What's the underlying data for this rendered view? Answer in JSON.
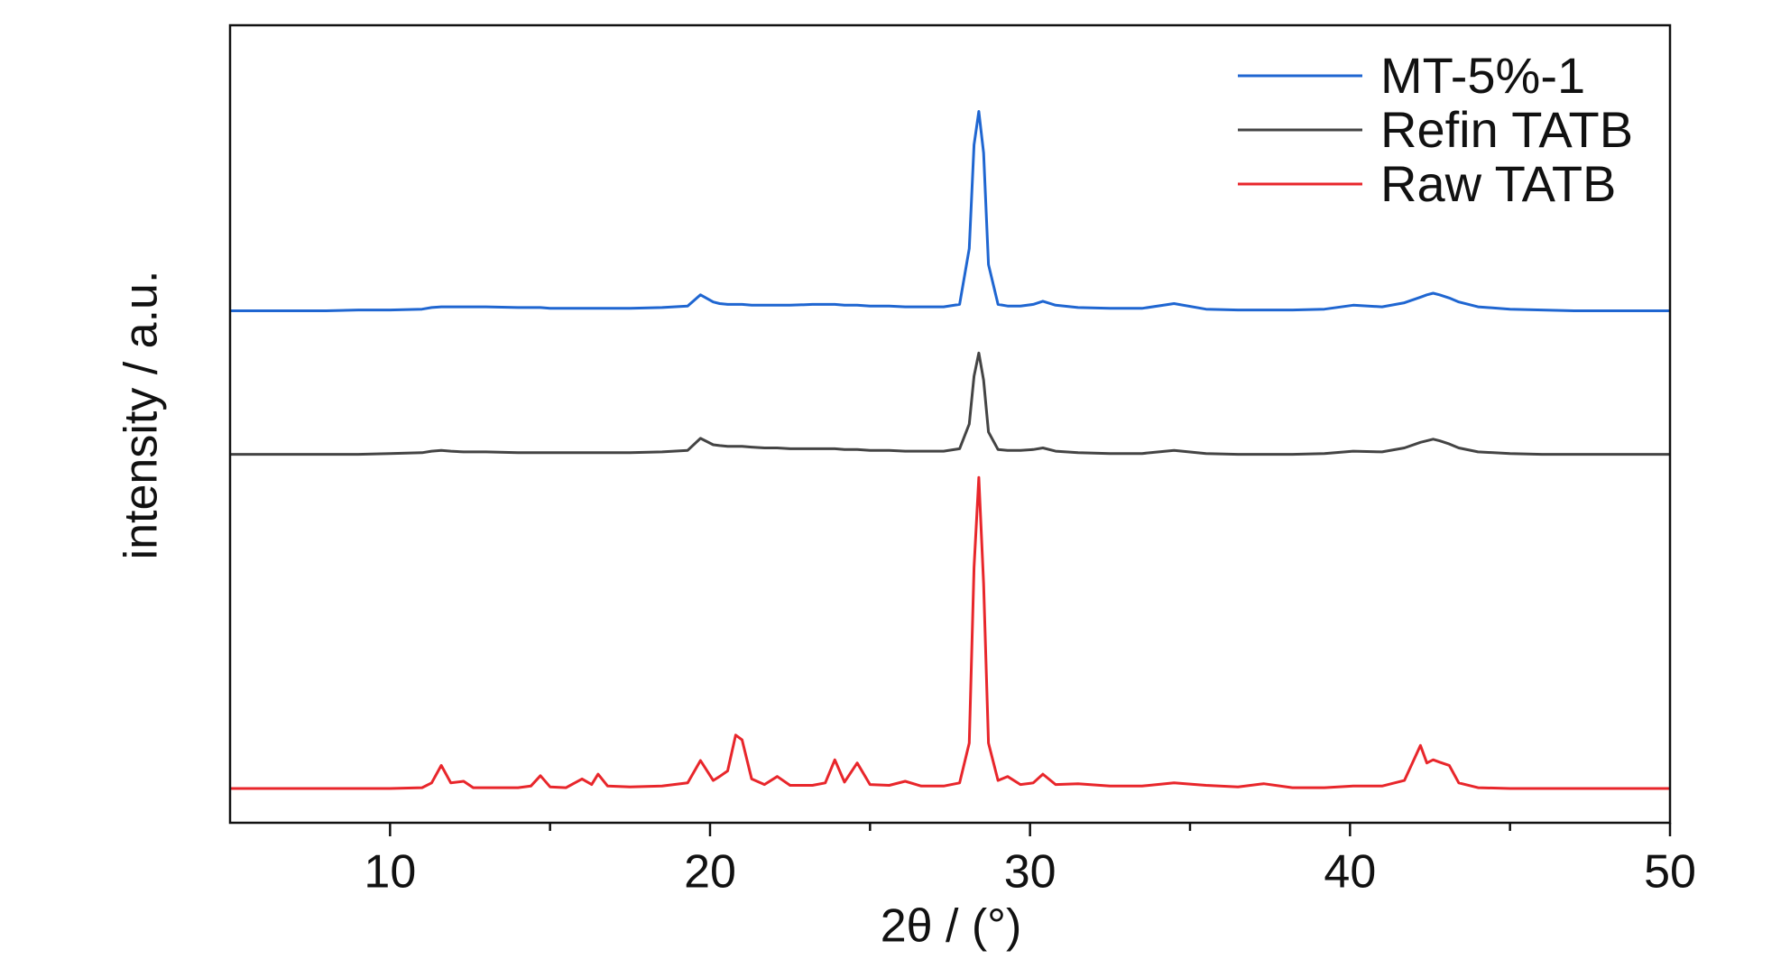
{
  "chart_data": {
    "type": "line",
    "x_label": "2θ / (°)",
    "y_label": "intensity / a.u.",
    "xlim": [
      5,
      50
    ],
    "xticks": [
      10,
      20,
      30,
      40,
      50
    ],
    "xminor": [
      15,
      25,
      35,
      45
    ],
    "ylim": [
      0,
      100
    ],
    "legend": "upper right",
    "x": [
      5,
      6,
      7,
      8,
      9,
      10,
      11,
      11.3,
      11.6,
      11.9,
      12.3,
      12.6,
      13,
      14,
      14.4,
      14.7,
      15,
      15.5,
      16,
      16.3,
      16.5,
      16.8,
      17.5,
      18.5,
      19.3,
      19.7,
      20.1,
      20.3,
      20.55,
      20.8,
      21.0,
      21.3,
      21.7,
      22.1,
      22.5,
      23.2,
      23.6,
      23.9,
      24.2,
      24.6,
      25,
      25.6,
      26.1,
      26.6,
      27.3,
      27.8,
      28.1,
      28.25,
      28.4,
      28.55,
      28.7,
      29,
      29.3,
      29.7,
      30.1,
      30.4,
      30.8,
      31.5,
      32.5,
      33.5,
      34.5,
      35.5,
      36.5,
      37.3,
      38.2,
      39.2,
      40.1,
      41,
      41.7,
      42.2,
      42.4,
      42.6,
      42.8,
      43.1,
      43.4,
      44,
      45,
      46,
      47,
      48,
      49,
      50
    ],
    "series": [
      {
        "name": "MT-5%-1",
        "color": "#1f66d1",
        "values": [
          64.2,
          64.2,
          64.2,
          64.2,
          64.3,
          64.3,
          64.4,
          64.6,
          64.7,
          64.7,
          64.7,
          64.7,
          64.7,
          64.6,
          64.6,
          64.6,
          64.5,
          64.5,
          64.5,
          64.5,
          64.5,
          64.5,
          64.5,
          64.6,
          64.8,
          66.2,
          65.3,
          65.1,
          65.0,
          65.0,
          65.0,
          64.9,
          64.9,
          64.9,
          64.9,
          65.0,
          65.0,
          65.0,
          64.9,
          64.9,
          64.8,
          64.8,
          64.7,
          64.7,
          64.7,
          65.0,
          72.0,
          85.0,
          89.2,
          84.0,
          70.0,
          65.0,
          64.8,
          64.8,
          65.0,
          65.4,
          64.9,
          64.6,
          64.5,
          64.5,
          65.1,
          64.4,
          64.3,
          64.3,
          64.3,
          64.4,
          64.9,
          64.7,
          65.2,
          65.9,
          66.2,
          66.4,
          66.2,
          65.8,
          65.3,
          64.7,
          64.4,
          64.3,
          64.2,
          64.2,
          64.2,
          64.2
        ]
      },
      {
        "name": "Refin TATB",
        "color": "#444444",
        "values": [
          46.2,
          46.2,
          46.2,
          46.2,
          46.2,
          46.3,
          46.4,
          46.6,
          46.7,
          46.6,
          46.5,
          46.5,
          46.5,
          46.4,
          46.4,
          46.4,
          46.4,
          46.4,
          46.4,
          46.4,
          46.4,
          46.4,
          46.4,
          46.5,
          46.7,
          48.2,
          47.4,
          47.3,
          47.2,
          47.2,
          47.2,
          47.1,
          47.0,
          47.0,
          46.9,
          46.9,
          46.9,
          46.9,
          46.8,
          46.8,
          46.7,
          46.7,
          46.6,
          46.6,
          46.6,
          46.9,
          50.0,
          56.0,
          58.9,
          55.5,
          49.0,
          46.8,
          46.7,
          46.7,
          46.8,
          47.0,
          46.6,
          46.4,
          46.3,
          46.3,
          46.7,
          46.3,
          46.2,
          46.2,
          46.2,
          46.3,
          46.6,
          46.5,
          47.0,
          47.7,
          47.9,
          48.1,
          47.9,
          47.5,
          47.0,
          46.5,
          46.3,
          46.2,
          46.2,
          46.2,
          46.2,
          46.2
        ]
      },
      {
        "name": "Raw TATB",
        "color": "#e8262b",
        "values": [
          4.3,
          4.3,
          4.3,
          4.3,
          4.3,
          4.3,
          4.4,
          5.0,
          7.2,
          5.0,
          5.2,
          4.4,
          4.4,
          4.4,
          4.6,
          5.9,
          4.5,
          4.4,
          5.5,
          4.8,
          6.1,
          4.6,
          4.5,
          4.6,
          5.0,
          7.8,
          5.3,
          5.8,
          6.5,
          11.0,
          10.4,
          5.5,
          4.8,
          5.8,
          4.7,
          4.7,
          5.0,
          7.9,
          5.1,
          7.5,
          4.8,
          4.7,
          5.2,
          4.6,
          4.6,
          5.0,
          10.0,
          32.0,
          43.3,
          30.0,
          10.0,
          5.3,
          5.8,
          4.8,
          5.0,
          6.1,
          4.8,
          4.9,
          4.6,
          4.6,
          5.0,
          4.7,
          4.5,
          4.9,
          4.4,
          4.4,
          4.6,
          4.6,
          5.3,
          9.7,
          7.5,
          7.9,
          7.6,
          7.2,
          5.0,
          4.4,
          4.3,
          4.3,
          4.3,
          4.3,
          4.3,
          4.3
        ]
      }
    ]
  }
}
